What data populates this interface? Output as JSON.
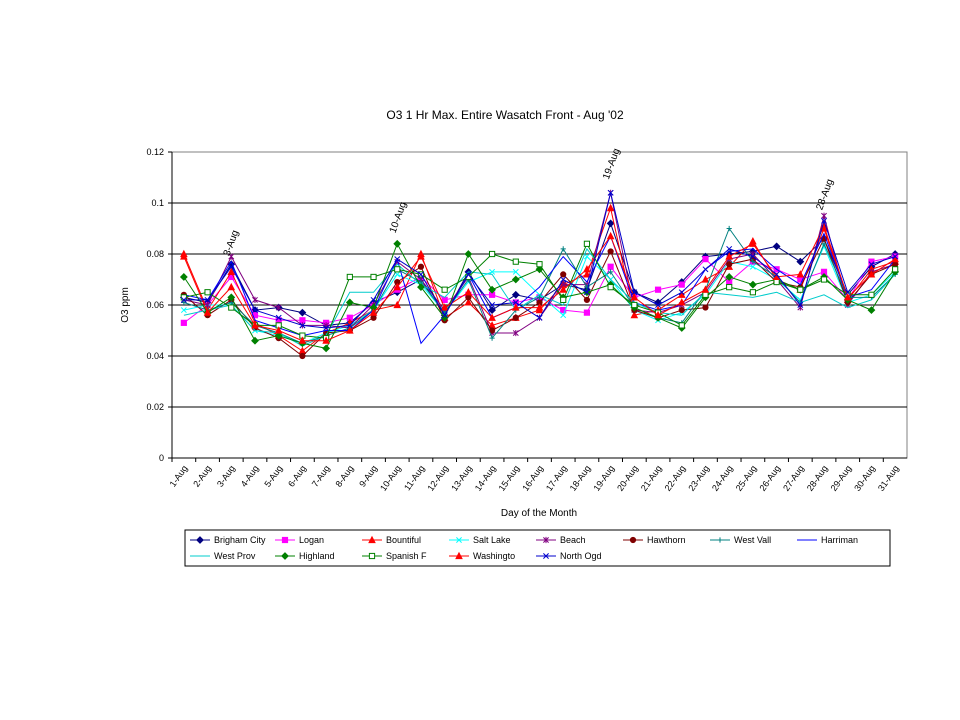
{
  "chart_data": {
    "type": "line",
    "title": "O3 1 Hr Max. Entire Wasatch Front - Aug '02",
    "xlabel": "Day of the Month",
    "ylabel": "O3 ppm",
    "ylim": [
      0,
      0.12
    ],
    "yticks": [
      "0",
      "0.02",
      "0.04",
      "0.06",
      "0.08",
      "0.1",
      "0.12"
    ],
    "grid": true,
    "legend_position": "bottom",
    "categories": [
      "1-Aug",
      "2-Aug",
      "3-Aug",
      "4-Aug",
      "5-Aug",
      "6-Aug",
      "7-Aug",
      "8-Aug",
      "9-Aug",
      "10-Aug",
      "11-Aug",
      "12-Aug",
      "13-Aug",
      "14-Aug",
      "15-Aug",
      "16-Aug",
      "17-Aug",
      "18-Aug",
      "19-Aug",
      "20-Aug",
      "21-Aug",
      "22-Aug",
      "23-Aug",
      "24-Aug",
      "25-Aug",
      "26-Aug",
      "27-Aug",
      "28-Aug",
      "29-Aug",
      "30-Aug",
      "31-Aug"
    ],
    "annotations": [
      {
        "text": "3-Aug",
        "category": "3-Aug",
        "value": 0.079
      },
      {
        "text": "10-Aug",
        "category": "10-Aug",
        "value": 0.088
      },
      {
        "text": "19-Aug",
        "category": "19-Aug",
        "value": 0.109
      },
      {
        "text": "28-Aug",
        "category": "28-Aug",
        "value": 0.097
      }
    ],
    "series": [
      {
        "name": "Brigham City",
        "color": "#000080",
        "marker": "diamond",
        "values": [
          0.063,
          0.061,
          0.076,
          0.058,
          0.059,
          0.057,
          0.052,
          0.053,
          0.061,
          0.065,
          0.07,
          0.056,
          0.073,
          0.058,
          0.064,
          0.062,
          0.068,
          0.066,
          0.092,
          0.065,
          0.061,
          0.069,
          0.079,
          0.08,
          0.081,
          0.083,
          0.077,
          0.086,
          0.064,
          0.075,
          0.08
        ]
      },
      {
        "name": "Logan",
        "color": "#ff00ff",
        "marker": "square",
        "values": [
          0.053,
          0.06,
          0.071,
          0.056,
          0.054,
          0.054,
          0.053,
          0.055,
          0.06,
          0.066,
          0.071,
          0.062,
          0.064,
          0.064,
          0.061,
          0.063,
          0.058,
          0.057,
          0.075,
          0.063,
          0.066,
          0.068,
          0.078,
          0.069,
          0.077,
          0.074,
          0.07,
          0.073,
          0.062,
          0.077,
          0.079
        ]
      },
      {
        "name": "Bountiful",
        "color": "#ff0000",
        "marker": "triangle",
        "values": [
          0.08,
          0.058,
          0.073,
          0.053,
          0.048,
          0.042,
          0.049,
          0.053,
          0.058,
          0.06,
          0.08,
          0.055,
          0.061,
          0.052,
          0.055,
          0.058,
          0.068,
          0.072,
          0.098,
          0.056,
          0.058,
          0.064,
          0.07,
          0.075,
          0.085,
          0.07,
          0.066,
          0.09,
          0.062,
          0.074,
          0.077
        ]
      },
      {
        "name": "Salt Lake",
        "color": "#00ffff",
        "marker": "x",
        "values": [
          0.058,
          0.06,
          0.06,
          0.05,
          0.048,
          0.045,
          0.049,
          0.052,
          0.058,
          0.072,
          0.068,
          0.057,
          0.069,
          0.073,
          0.073,
          0.064,
          0.056,
          0.079,
          0.07,
          0.058,
          0.054,
          0.057,
          0.064,
          0.077,
          0.075,
          0.07,
          0.062,
          0.083,
          0.061,
          0.064,
          0.073
        ]
      },
      {
        "name": "Beach",
        "color": "#800080",
        "marker": "star",
        "values": [
          0.062,
          0.06,
          0.079,
          0.062,
          0.059,
          0.052,
          0.052,
          0.051,
          0.06,
          0.077,
          0.07,
          0.058,
          0.071,
          0.049,
          0.049,
          0.055,
          0.068,
          0.068,
          0.104,
          0.058,
          0.057,
          0.06,
          0.065,
          0.078,
          0.08,
          0.07,
          0.059,
          0.095,
          0.06,
          0.073,
          0.076
        ]
      },
      {
        "name": "Hawthorn",
        "color": "#800000",
        "marker": "circle",
        "values": [
          0.064,
          0.056,
          0.062,
          0.051,
          0.047,
          0.04,
          0.049,
          0.05,
          0.055,
          0.069,
          0.075,
          0.054,
          0.063,
          0.05,
          0.055,
          0.061,
          0.072,
          0.062,
          0.081,
          0.058,
          0.055,
          0.058,
          0.059,
          0.076,
          0.078,
          0.069,
          0.067,
          0.086,
          0.061,
          0.072,
          0.076
        ]
      },
      {
        "name": "West Vall",
        "color": "#008080",
        "marker": "plus",
        "values": [
          0.061,
          0.058,
          0.061,
          0.052,
          0.049,
          0.045,
          0.048,
          0.051,
          0.058,
          0.074,
          0.069,
          0.057,
          0.07,
          0.047,
          0.058,
          0.063,
          0.082,
          0.067,
          0.073,
          0.059,
          0.055,
          0.053,
          0.066,
          0.09,
          0.077,
          0.071,
          0.061,
          0.084,
          0.063,
          0.063,
          0.072
        ]
      },
      {
        "name": "Harriman",
        "color": "#0000ff",
        "marker": "line",
        "values": [
          0.064,
          0.062,
          0.077,
          0.054,
          0.051,
          0.048,
          0.05,
          0.05,
          0.058,
          0.078,
          0.045,
          0.056,
          0.072,
          0.055,
          0.059,
          0.067,
          0.079,
          0.069,
          0.087,
          0.061,
          0.058,
          0.06,
          0.074,
          0.081,
          0.082,
          0.074,
          0.068,
          0.088,
          0.063,
          0.066,
          0.078
        ]
      },
      {
        "name": "West Prov",
        "color": "#00cccc",
        "marker": "line",
        "values": [
          0.056,
          0.058,
          0.06,
          0.05,
          0.049,
          0.044,
          0.048,
          0.065,
          0.065,
          0.076,
          0.068,
          0.063,
          0.073,
          0.072,
          0.058,
          0.064,
          0.06,
          0.082,
          0.07,
          0.061,
          0.057,
          0.056,
          0.065,
          0.064,
          0.063,
          0.065,
          0.061,
          0.064,
          0.059,
          0.062,
          0.072
        ]
      },
      {
        "name": "Highland",
        "color": "#008000",
        "marker": "diamond",
        "values": [
          0.071,
          0.057,
          0.063,
          0.046,
          0.048,
          0.045,
          0.043,
          0.061,
          0.059,
          0.084,
          0.067,
          0.055,
          0.08,
          0.066,
          0.07,
          0.074,
          0.063,
          0.065,
          0.068,
          0.059,
          0.055,
          0.051,
          0.063,
          0.071,
          0.068,
          0.07,
          0.066,
          0.071,
          0.062,
          0.058,
          0.073
        ]
      },
      {
        "name": "Spanish F",
        "color": "#008000",
        "marker": "square-open",
        "values": [
          0.063,
          0.065,
          0.059,
          0.052,
          0.052,
          0.048,
          0.047,
          0.071,
          0.071,
          0.074,
          0.072,
          0.066,
          0.071,
          0.08,
          0.077,
          0.076,
          0.062,
          0.084,
          0.067,
          0.06,
          0.057,
          0.052,
          0.064,
          0.067,
          0.065,
          0.069,
          0.066,
          0.07,
          0.064,
          0.064,
          0.074
        ]
      },
      {
        "name": "Washingto",
        "color": "#ff0000",
        "marker": "triangle",
        "values": [
          0.079,
          0.057,
          0.067,
          0.052,
          0.05,
          0.046,
          0.046,
          0.05,
          0.057,
          0.067,
          0.079,
          0.059,
          0.065,
          0.055,
          0.059,
          0.059,
          0.066,
          0.074,
          0.087,
          0.063,
          0.056,
          0.061,
          0.066,
          0.079,
          0.084,
          0.071,
          0.072,
          0.091,
          0.063,
          0.072,
          0.078
        ]
      },
      {
        "name": "North Ogd",
        "color": "#0000cc",
        "marker": "x",
        "values": [
          0.062,
          0.062,
          0.075,
          0.058,
          0.055,
          0.052,
          0.051,
          0.052,
          0.062,
          0.078,
          0.072,
          0.056,
          0.072,
          0.06,
          0.061,
          0.055,
          0.07,
          0.065,
          0.104,
          0.065,
          0.06,
          0.065,
          0.074,
          0.082,
          0.079,
          0.072,
          0.06,
          0.093,
          0.065,
          0.076,
          0.079
        ]
      }
    ]
  }
}
